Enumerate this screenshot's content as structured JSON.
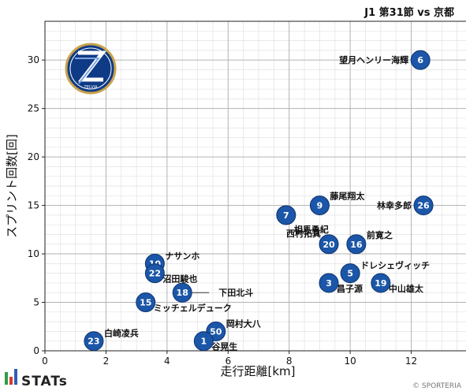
{
  "header": {
    "match_title": "J1 第31節 vs 京都"
  },
  "footer": {
    "brand": "STATs",
    "copyright": "© SPORTERIA"
  },
  "colors": {
    "marker": "#1b56a8",
    "marker_edge": "#0d3470",
    "grid_major": "#b3b3b3",
    "grid_minor": "#e2e2e2"
  },
  "chart_data": {
    "type": "scatter",
    "xlabel": "走行距離[km]",
    "ylabel": "スプリント回数[回]",
    "xlim": [
      0,
      14
    ],
    "ylim": [
      0,
      34
    ],
    "xticks": [
      0,
      2,
      4,
      6,
      8,
      10,
      12,
      14
    ],
    "yticks": [
      0,
      5,
      10,
      15,
      20,
      25,
      30
    ],
    "grid": true,
    "points": [
      {
        "number": "6",
        "name": "望月ヘンリー海輝",
        "x": 12.3,
        "y": 30,
        "label_pos": "left"
      },
      {
        "number": "9",
        "name": "藤尾翔太",
        "x": 9.0,
        "y": 15,
        "label_pos": "right"
      },
      {
        "number": "26",
        "name": "林幸多郎",
        "x": 12.4,
        "y": 15,
        "label_pos": "left"
      },
      {
        "number": "7",
        "name": "相馬勇紀",
        "x": 7.9,
        "y": 14,
        "label_pos": "below-right"
      },
      {
        "number": "20",
        "name": "西村拓真",
        "x": 9.3,
        "y": 11,
        "label_pos": "above-left"
      },
      {
        "number": "16",
        "name": "前寛之",
        "x": 10.2,
        "y": 11,
        "label_pos": "right"
      },
      {
        "number": "5",
        "name": "ドレシェヴィッチ",
        "x": 10.0,
        "y": 8,
        "label_pos": "right-up"
      },
      {
        "number": "3",
        "name": "昌子源",
        "x": 9.3,
        "y": 7,
        "label_pos": "right-down"
      },
      {
        "number": "19",
        "name": "中山雄太",
        "x": 11.0,
        "y": 7,
        "label_pos": "right-down"
      },
      {
        "number": "10",
        "name": "ナサンホ",
        "x": 3.6,
        "y": 9,
        "label_pos": "right-up"
      },
      {
        "number": "22",
        "name": "沼田駿也",
        "x": 3.6,
        "y": 8,
        "label_pos": "right-down"
      },
      {
        "number": "18",
        "name": "下田北斗",
        "x": 4.5,
        "y": 6,
        "label_pos": "leader-right"
      },
      {
        "number": "15",
        "name": "ミッチェルデューク",
        "x": 3.3,
        "y": 5,
        "label_pos": "right-down"
      },
      {
        "number": "50",
        "name": "岡村大八",
        "x": 5.6,
        "y": 2,
        "label_pos": "right-up"
      },
      {
        "number": "1",
        "name": "谷晃生",
        "x": 5.2,
        "y": 1,
        "label_pos": "right-down"
      },
      {
        "number": "23",
        "name": "白崎凌兵",
        "x": 1.6,
        "y": 1,
        "label_pos": "right-up"
      }
    ]
  }
}
